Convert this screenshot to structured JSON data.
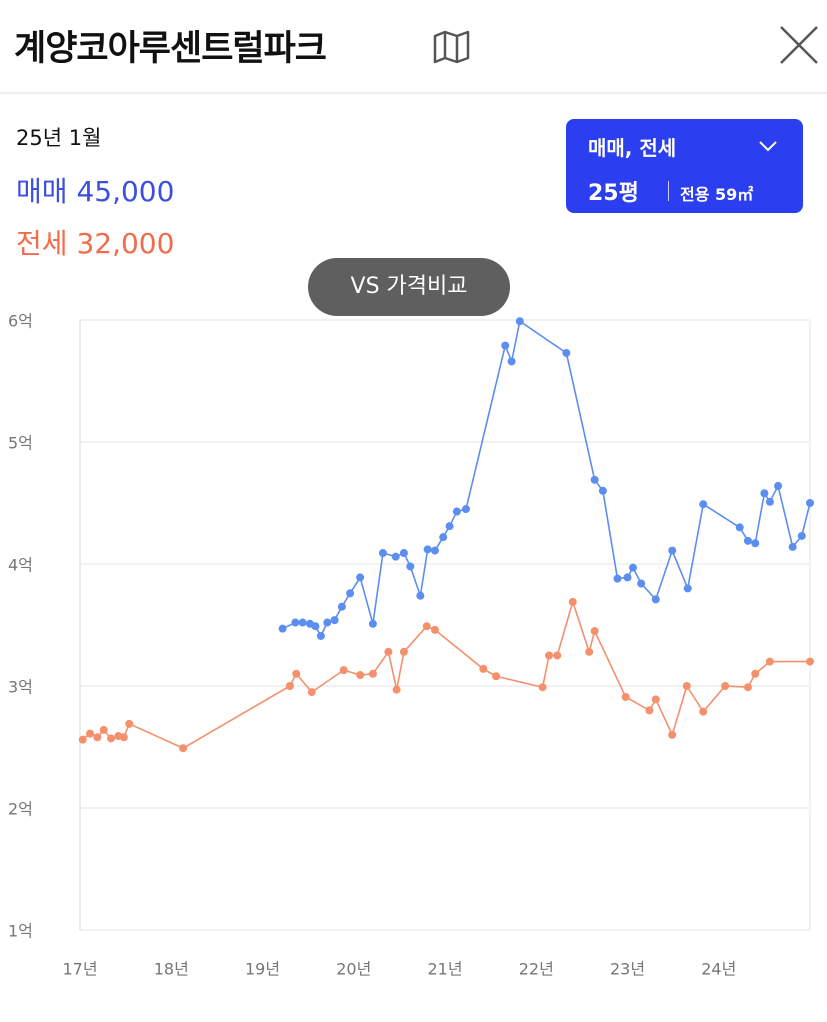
{
  "header": {
    "title": "계양코아루센트럴파크"
  },
  "info": {
    "date": "25년 1월",
    "sale_value": "45,000",
    "jeonse_value": "32,000"
  },
  "filter": {
    "type": "매매, 전세",
    "size": "25평",
    "area": "전용 59㎡"
  },
  "compare": "VS 가격비교",
  "chart_data": {
    "type": "line",
    "xlim": [
      2017,
      2025
    ],
    "xticks": [
      {
        "value": 2017,
        "label": "17년"
      },
      {
        "value": 2018,
        "label": "18년"
      },
      {
        "value": 2019,
        "label": "19년"
      },
      {
        "value": 2020,
        "label": "20년"
      },
      {
        "value": 2021,
        "label": "21년"
      },
      {
        "value": 2022,
        "label": "22년"
      },
      {
        "value": 2023,
        "label": "23년"
      },
      {
        "value": 2024,
        "label": "24년"
      }
    ],
    "ylim": [
      10000,
      60000
    ],
    "yticks": [
      {
        "value": 10000,
        "label": "1억"
      },
      {
        "value": 20000,
        "label": "2억"
      },
      {
        "value": 30000,
        "label": "3억"
      },
      {
        "value": 40000,
        "label": "4억"
      },
      {
        "value": 50000,
        "label": "5억"
      },
      {
        "value": 60000,
        "label": "6억"
      }
    ],
    "grid": true,
    "series": [
      {
        "name": "매매",
        "color": "#5b8ef0",
        "x": [
          2019.22,
          2019.36,
          2019.44,
          2019.52,
          2019.58,
          2019.64,
          2019.71,
          2019.79,
          2019.87,
          2019.96,
          2020.07,
          2020.21,
          2020.32,
          2020.46,
          2020.55,
          2020.62,
          2020.73,
          2020.81,
          2020.89,
          2020.98,
          2021.05,
          2021.13,
          2021.23,
          2021.66,
          2021.73,
          2021.82,
          2022.33,
          2022.64,
          2022.73,
          2022.89,
          2023.0,
          2023.06,
          2023.15,
          2023.31,
          2023.49,
          2023.66,
          2023.83,
          2024.23,
          2024.32,
          2024.4,
          2024.5,
          2024.56,
          2024.65,
          2024.81,
          2024.91,
          2025.0
        ],
        "values": [
          34700,
          35200,
          35200,
          35100,
          34900,
          34100,
          35200,
          35400,
          36500,
          37600,
          38900,
          35100,
          40900,
          40600,
          40900,
          39800,
          37400,
          41200,
          41100,
          42200,
          43100,
          44300,
          44500,
          57900,
          56600,
          59900,
          57300,
          46900,
          46000,
          38800,
          38900,
          39700,
          38400,
          37100,
          41100,
          38000,
          44900,
          43000,
          41900,
          41700,
          45800,
          45100,
          46400,
          41400,
          42300,
          45000
        ]
      },
      {
        "name": "전세",
        "color": "#f4906c",
        "x": [
          2017.03,
          2017.11,
          2017.19,
          2017.26,
          2017.34,
          2017.42,
          2017.48,
          2017.54,
          2018.13,
          2019.3,
          2019.37,
          2019.54,
          2019.89,
          2020.07,
          2020.21,
          2020.38,
          2020.47,
          2020.55,
          2020.8,
          2020.89,
          2021.42,
          2021.56,
          2022.07,
          2022.14,
          2022.23,
          2022.4,
          2022.58,
          2022.64,
          2022.98,
          2023.24,
          2023.31,
          2023.49,
          2023.65,
          2023.83,
          2024.07,
          2024.32,
          2024.4,
          2024.56,
          2025.0
        ],
        "values": [
          25600,
          26100,
          25800,
          26400,
          25700,
          25900,
          25800,
          26900,
          24900,
          30000,
          31000,
          29500,
          31300,
          30900,
          31000,
          32800,
          29700,
          32800,
          34900,
          34600,
          31400,
          30800,
          29900,
          32500,
          32500,
          36900,
          32800,
          34500,
          29100,
          28000,
          28900,
          26000,
          30000,
          27900,
          30000,
          29900,
          31000,
          32000,
          32000
        ]
      }
    ]
  }
}
